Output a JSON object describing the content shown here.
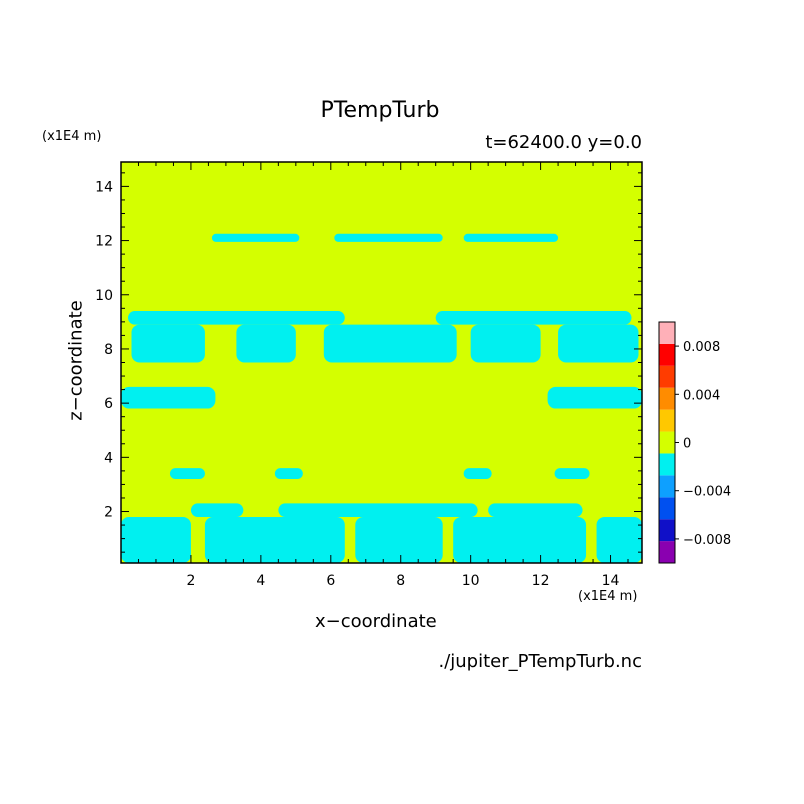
{
  "chart_data": {
    "type": "heatmap",
    "title": "PTempTurb",
    "subtitle": "t=62400.0 y=0.0",
    "xlabel": "x−coordinate",
    "ylabel": "z−coordinate",
    "x_unit": "(x1E4 m)",
    "y_unit": "(x1E4 m)",
    "source": "./jupiter_PTempTurb.nc",
    "xlim": [
      0.0,
      14.9
    ],
    "ylim": [
      0.1,
      14.9
    ],
    "xticks": [
      2,
      4,
      6,
      8,
      10,
      12,
      14
    ],
    "yticks": [
      2,
      4,
      6,
      8,
      10,
      12,
      14
    ],
    "colorbar": {
      "levels": [
        -0.01,
        -0.008,
        -0.006,
        -0.004,
        -0.002,
        0,
        0.002,
        0.004,
        0.006,
        0.008,
        0.01
      ],
      "labels": [
        "0.008",
        "0.004",
        "0",
        "−0.004",
        "−0.008"
      ],
      "label_values": [
        0.008,
        0.004,
        0,
        -0.004,
        -0.008
      ],
      "colors": [
        "#8a00b0",
        "#1010c8",
        "#0050f0",
        "#0ea0ff",
        "#00f0f0",
        "#d4ff00",
        "#ffc800",
        "#ff8c00",
        "#ff3c00",
        "#ff0000",
        "#ffb0b8"
      ]
    },
    "background_value_range": [
      0,
      0.002
    ],
    "background_color": "#d4ff00",
    "anomaly_value_range": [
      -0.002,
      0
    ],
    "anomaly_color": "#00f0f0",
    "anomaly_regions": [
      {
        "z_range": [
          11.95,
          12.25
        ],
        "x_ranges": [
          [
            2.6,
            5.1
          ],
          [
            6.1,
            9.2
          ],
          [
            9.8,
            12.5
          ]
        ]
      },
      {
        "z_range": [
          8.9,
          9.4
        ],
        "x_ranges": [
          [
            0.2,
            6.4
          ],
          [
            9.0,
            14.6
          ]
        ]
      },
      {
        "z_range": [
          7.5,
          8.9
        ],
        "x_ranges": [
          [
            0.3,
            2.4
          ],
          [
            3.3,
            5.0
          ],
          [
            5.8,
            9.6
          ],
          [
            10.0,
            12.0
          ],
          [
            12.5,
            14.8
          ]
        ]
      },
      {
        "z_range": [
          5.8,
          6.6
        ],
        "x_ranges": [
          [
            0.0,
            2.7
          ],
          [
            12.2,
            14.9
          ]
        ]
      },
      {
        "z_range": [
          3.2,
          3.6
        ],
        "x_ranges": [
          [
            1.4,
            2.4
          ],
          [
            4.4,
            5.2
          ],
          [
            9.8,
            10.6
          ],
          [
            12.4,
            13.4
          ]
        ]
      },
      {
        "z_range": [
          1.8,
          2.3
        ],
        "x_ranges": [
          [
            2.0,
            3.5
          ],
          [
            4.5,
            10.2
          ],
          [
            10.5,
            13.2
          ]
        ]
      },
      {
        "z_range": [
          0.1,
          1.8
        ],
        "x_ranges": [
          [
            0.0,
            2.0
          ],
          [
            2.4,
            6.4
          ],
          [
            6.7,
            9.2
          ],
          [
            9.5,
            13.3
          ],
          [
            13.6,
            14.9
          ]
        ]
      }
    ]
  }
}
